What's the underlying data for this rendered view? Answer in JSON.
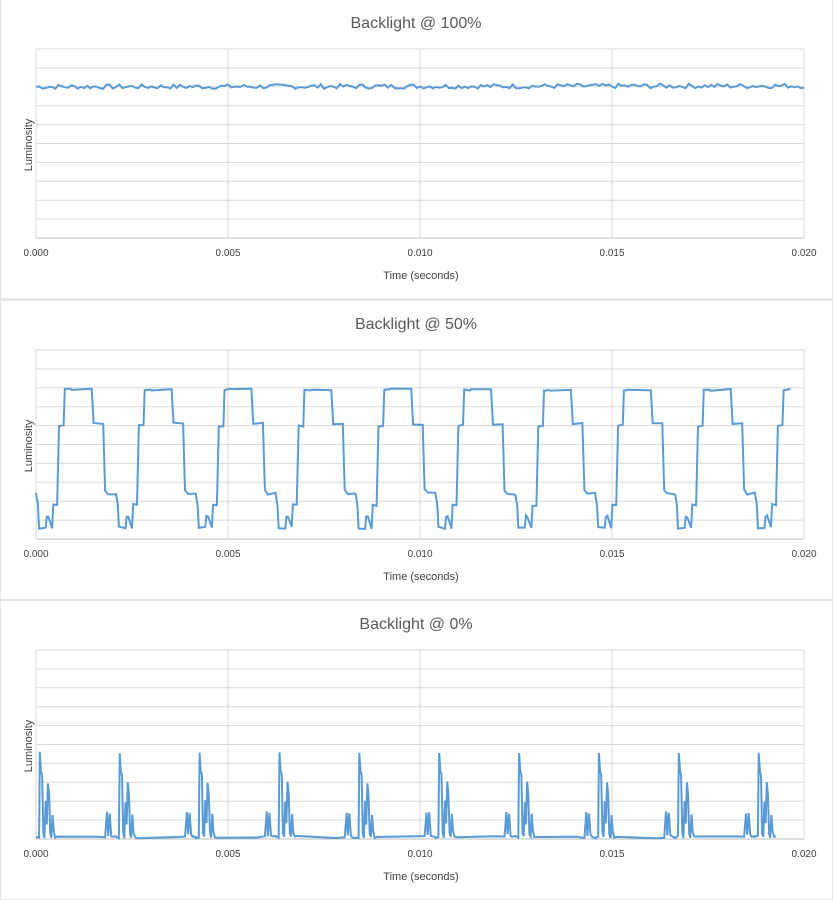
{
  "chart_data": [
    {
      "type": "line",
      "title": "Backlight @ 100%",
      "xlabel": "Time (seconds)",
      "ylabel": "Luminosity",
      "x_ticks": [
        "0.000",
        "0.005",
        "0.010",
        "0.015",
        "0.020"
      ],
      "xlim": [
        0,
        0.02
      ],
      "ylim": [
        0,
        10
      ],
      "grid": true,
      "legend": "none",
      "color": "#5b9bd5",
      "series": [
        {
          "waveform": "flat",
          "x": [
            0,
            0.02
          ],
          "y": [
            8.0,
            8.05
          ]
        }
      ]
    },
    {
      "type": "line",
      "title": "Backlight @ 50%",
      "xlabel": "Time (seconds)",
      "ylabel": "Luminosity",
      "x_ticks": [
        "0.000",
        "0.005",
        "0.010",
        "0.015",
        "0.020"
      ],
      "xlim": [
        0,
        0.02
      ],
      "ylim": [
        0,
        10
      ],
      "grid": true,
      "legend": "none",
      "color": "#5b9bd5",
      "series": [
        {
          "waveform": "periodic",
          "period": 0.00208,
          "phase": 0.0,
          "x": [
            0.0,
            5e-05,
            8e-05,
            0.00025,
            0.00028,
            0.00032,
            0.00042,
            0.00045,
            0.00055,
            0.0006,
            0.00072,
            0.00075,
            0.0009,
            0.00093,
            0.00145,
            0.0015,
            0.00175,
            0.0018,
            0.00188,
            0.00208
          ],
          "y": [
            2.4,
            1.8,
            0.6,
            0.6,
            1.2,
            1.2,
            0.6,
            1.8,
            1.8,
            6.0,
            6.0,
            7.9,
            7.9,
            7.9,
            7.9,
            6.1,
            6.1,
            2.6,
            2.4,
            2.4
          ]
        }
      ]
    },
    {
      "type": "line",
      "title": "Backlight @ 0%",
      "xlabel": "Time (seconds)",
      "ylabel": "Luminosity",
      "x_ticks": [
        "0.000",
        "0.005",
        "0.010",
        "0.015",
        "0.020"
      ],
      "xlim": [
        0,
        0.02
      ],
      "ylim": [
        0,
        10
      ],
      "grid": true,
      "legend": "none",
      "color": "#5b9bd5",
      "series": [
        {
          "waveform": "periodic",
          "period": 0.00208,
          "phase": 0.0,
          "x": [
            0.0,
            8e-05,
            0.0001,
            0.00013,
            0.00016,
            0.00019,
            0.00022,
            0.00025,
            0.00028,
            0.00031,
            0.00034,
            0.00037,
            0.0004,
            0.00043,
            0.00046,
            0.0005,
            0.00055,
            0.0016,
            0.0018,
            0.00185,
            0.00188,
            0.00192,
            0.00196,
            0.002,
            0.00208
          ],
          "y": [
            0.1,
            0.1,
            4.6,
            3.6,
            3.4,
            0.3,
            0.1,
            2.0,
            0.8,
            3.0,
            2.4,
            0.3,
            0.1,
            1.3,
            0.4,
            0.1,
            0.1,
            0.1,
            0.1,
            1.4,
            0.2,
            1.4,
            0.2,
            0.1,
            0.1
          ]
        }
      ]
    }
  ]
}
